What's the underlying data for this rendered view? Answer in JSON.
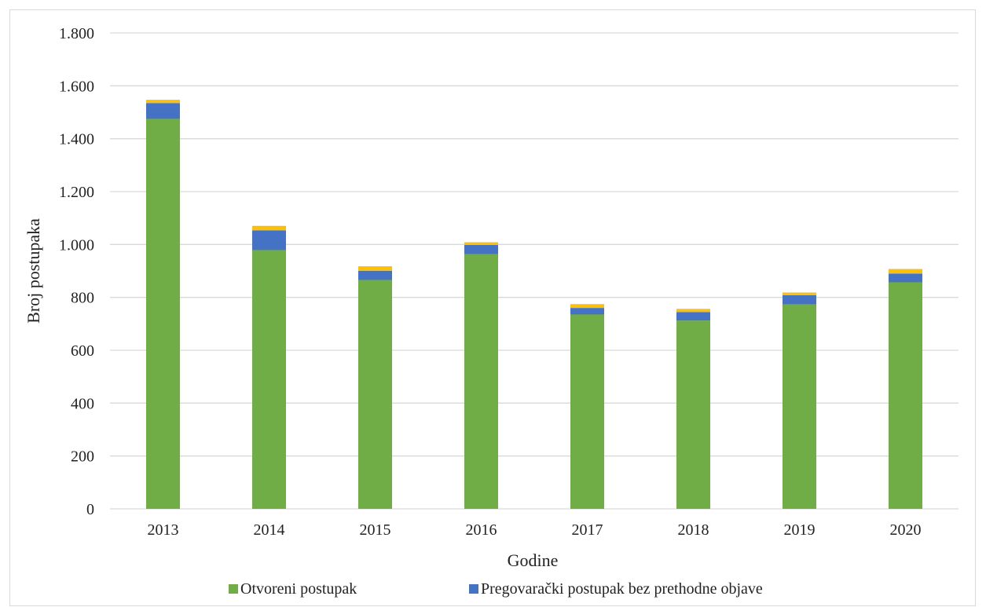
{
  "chart_data": {
    "type": "bar",
    "stacked": true,
    "title": "",
    "xlabel": "Godine",
    "ylabel": "Broj postupaka",
    "categories": [
      "2013",
      "2014",
      "2015",
      "2016",
      "2017",
      "2018",
      "2019",
      "2020"
    ],
    "ylim": [
      0,
      1800
    ],
    "yticks": [
      0,
      200,
      400,
      600,
      800,
      1000,
      1200,
      1400,
      1600,
      1800
    ],
    "ytick_labels": [
      "0",
      "200",
      "400",
      "600",
      "800",
      "1.000",
      "1.200",
      "1.400",
      "1.600",
      "1.800"
    ],
    "grid": true,
    "legend_position": "bottom",
    "series": [
      {
        "name": "Otvoreni postupak",
        "color": "#70ad47",
        "values": [
          1475,
          978,
          865,
          963,
          735,
          712,
          773,
          857
        ]
      },
      {
        "name": "Pregovarački postupak bez prethodne objave",
        "color": "#4472c4",
        "values": [
          60,
          75,
          35,
          35,
          25,
          32,
          35,
          33
        ]
      },
      {
        "color": "#ffc000",
        "values": [
          10,
          15,
          15,
          8,
          12,
          10,
          8,
          15
        ]
      },
      {
        "color": "#a6a6a6",
        "values": [
          2,
          2,
          2,
          2,
          2,
          2,
          2,
          2
        ]
      }
    ],
    "legend_entries": [
      "Otvoreni postupak",
      "Pregovarački postupak bez prethodne objave"
    ]
  }
}
